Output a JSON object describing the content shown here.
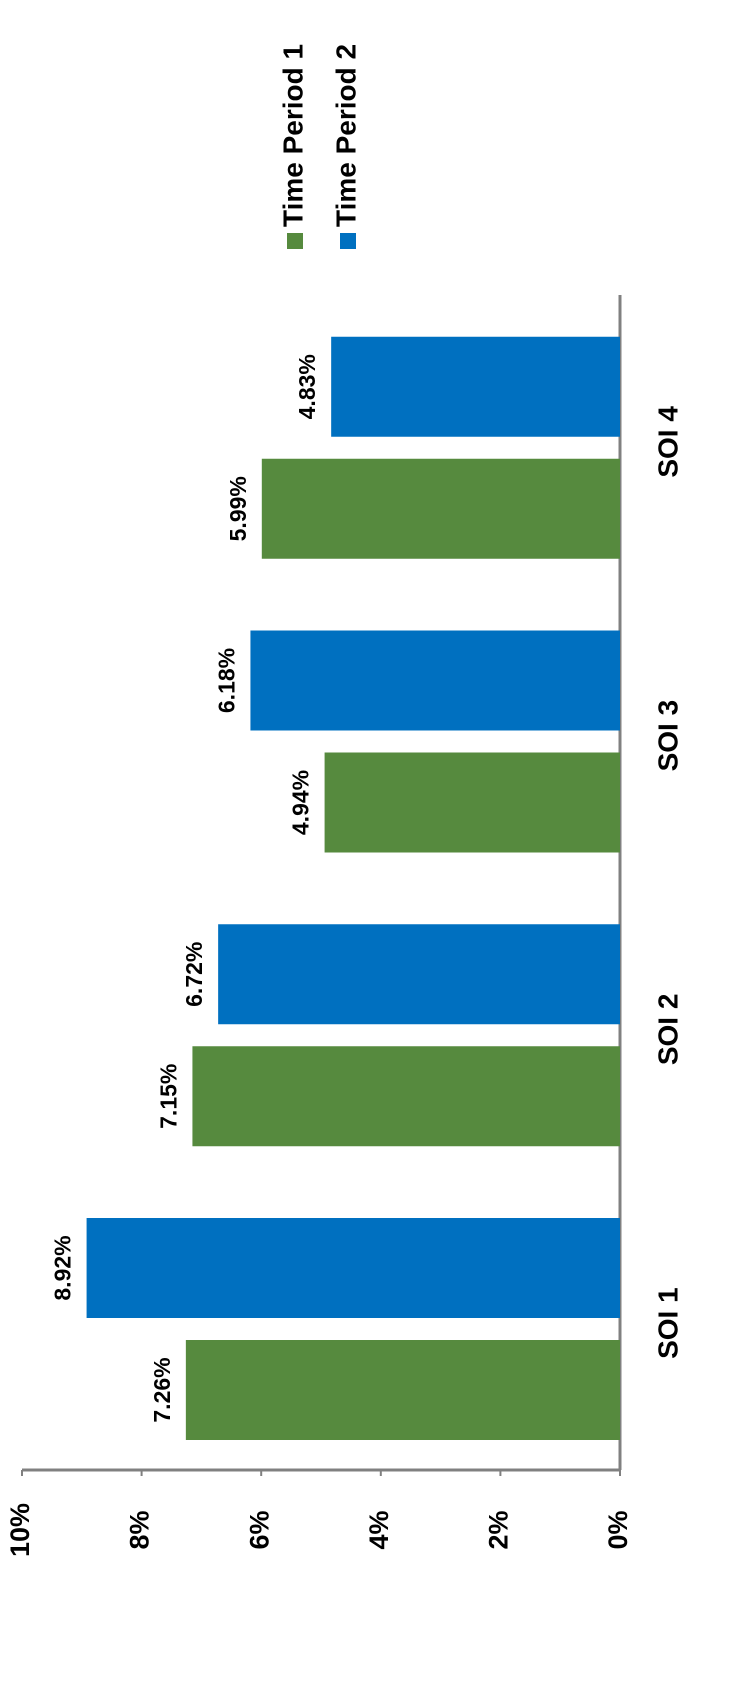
{
  "chart_data": {
    "type": "bar",
    "categories": [
      "SOI 1",
      "SOI 2",
      "SOI 3",
      "SOI 4"
    ],
    "series": [
      {
        "name": "Time Period 1",
        "color": "#568a3e",
        "values": [
          7.26,
          7.15,
          4.94,
          5.99
        ],
        "value_labels": [
          "7.26%",
          "7.15%",
          "4.94%",
          "5.99%"
        ]
      },
      {
        "name": "Time Period 2",
        "color": "#0070c0",
        "values": [
          8.92,
          6.72,
          6.18,
          4.83
        ],
        "value_labels": [
          "8.92%",
          "6.72%",
          "6.18%",
          "4.83%"
        ]
      }
    ],
    "ylim": [
      0,
      10
    ],
    "yticks": [
      {
        "value": 0,
        "label": "0%"
      },
      {
        "value": 2,
        "label": "2%"
      },
      {
        "value": 4,
        "label": "4%"
      },
      {
        "value": 6,
        "label": "6%"
      },
      {
        "value": 8,
        "label": "8%"
      },
      {
        "value": 10,
        "label": "10%"
      }
    ],
    "grid": false,
    "legend": "right"
  }
}
